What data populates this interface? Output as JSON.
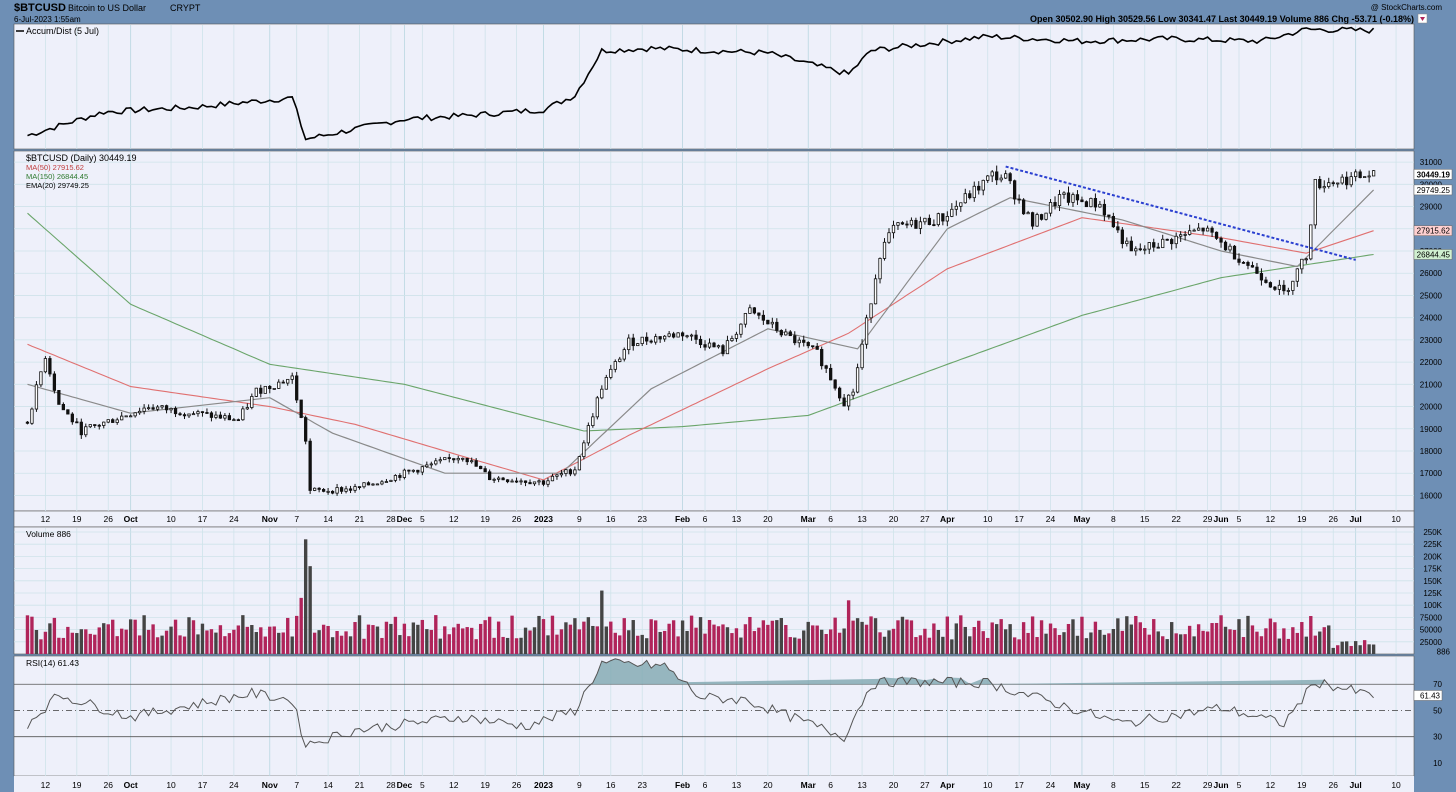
{
  "header": {
    "symbol": "$BTCUSD",
    "name": "Bitcoin to US Dollar",
    "exchange": "CRYPT",
    "date": "6-Jul-2023 1:55am",
    "watermark": "@ StockCharts.com",
    "ohlc_text": "Open 30502.90   High 30529.56   Low 30341.47   Last 30449.19   Volume 886   Chg -53.71 (-0.18%)"
  },
  "colors": {
    "background": "#6e8fb5",
    "panel": "#eef0fa",
    "grid": "#cfe3ea",
    "candle": "#111111",
    "ma50": "#e07070",
    "ma150": "#6aa56a",
    "ema20": "#8a8a8a",
    "trendline": "#2a3fd0",
    "volume_up": "#444444",
    "volume_down": "#b0245a",
    "rsi_fill": "#7fa8b0"
  },
  "x_axis": {
    "ticks": [
      "12",
      "19",
      "26",
      "Oct",
      "10",
      "17",
      "24",
      "Nov",
      "7",
      "14",
      "21",
      "28",
      "Dec",
      "5",
      "12",
      "19",
      "26",
      "2023",
      "9",
      "16",
      "23",
      "Feb",
      "6",
      "13",
      "20",
      "Mar",
      "6",
      "13",
      "20",
      "27",
      "Apr",
      "10",
      "17",
      "24",
      "May",
      "8",
      "15",
      "22",
      "29",
      "Jun",
      "5",
      "12",
      "19",
      "26",
      "Jul",
      "10"
    ],
    "bold_ticks": [
      "Oct",
      "Nov",
      "Dec",
      "2023",
      "Feb",
      "Mar",
      "Apr",
      "May",
      "Jun",
      "Jul"
    ]
  },
  "chart_data": [
    {
      "type": "line",
      "title": "Accum/Dist (5 Jul)",
      "x": [
        "2022-09-08",
        "2022-09-25",
        "2022-10-15",
        "2022-11-06",
        "2022-11-09",
        "2022-12-01",
        "2022-12-15",
        "2023-01-01",
        "2023-01-08",
        "2023-01-14",
        "2023-01-25",
        "2023-02-20",
        "2023-03-10",
        "2023-03-15",
        "2023-04-01",
        "2023-04-10",
        "2023-05-01",
        "2023-05-20",
        "2023-06-10",
        "2023-06-20",
        "2023-07-05"
      ],
      "y": [
        0.08,
        0.28,
        0.32,
        0.4,
        0.05,
        0.22,
        0.25,
        0.3,
        0.42,
        0.8,
        0.82,
        0.78,
        0.6,
        0.8,
        0.88,
        0.92,
        0.88,
        0.9,
        0.88,
        0.98,
        0.97
      ]
    },
    {
      "type": "candlestick",
      "title": "$BTCUSD (Daily) 30449.19",
      "ylim": [
        15300,
        31500
      ],
      "y_ticks": [
        16000,
        17000,
        18000,
        19000,
        20000,
        21000,
        22000,
        23000,
        24000,
        25000,
        26000,
        27000,
        28000,
        29000,
        30000,
        31000
      ],
      "last_labels": [
        "30449.19",
        "29749.25",
        "27915.62",
        "26844.45"
      ],
      "legend": [
        "MA(50) 27915.62",
        "MA(150) 26844.45",
        "EMA(20) 29749.25"
      ],
      "close_keypoints": {
        "x": [
          "2022-09-08",
          "2022-09-12",
          "2022-09-15",
          "2022-09-20",
          "2022-10-05",
          "2022-10-25",
          "2022-10-29",
          "2022-11-06",
          "2022-11-09",
          "2022-11-10",
          "2022-11-20",
          "2022-12-01",
          "2022-12-14",
          "2022-12-20",
          "2023-01-01",
          "2023-01-08",
          "2023-01-14",
          "2023-01-20",
          "2023-02-01",
          "2023-02-10",
          "2023-02-16",
          "2023-02-24",
          "2023-03-03",
          "2023-03-09",
          "2023-03-11",
          "2023-03-17",
          "2023-03-20",
          "2023-03-31",
          "2023-04-11",
          "2023-04-14",
          "2023-04-20",
          "2023-04-26",
          "2023-05-05",
          "2023-05-12",
          "2023-05-28",
          "2023-06-02",
          "2023-06-10",
          "2023-06-15",
          "2023-06-20",
          "2023-06-22",
          "2023-07-05"
        ],
        "y": [
          19300,
          22300,
          20100,
          18900,
          20000,
          19400,
          20700,
          21300,
          18500,
          16200,
          16300,
          17000,
          17800,
          16800,
          16600,
          17200,
          20900,
          22900,
          23300,
          22500,
          24300,
          23200,
          22400,
          20200,
          20700,
          26900,
          28000,
          28500,
          30400,
          30300,
          28200,
          29400,
          29100,
          26900,
          28000,
          27200,
          25900,
          25100,
          26800,
          30000,
          30449
        ]
      },
      "ma50": {
        "x": [
          "2022-09-08",
          "2022-10-01",
          "2022-11-01",
          "2022-11-20",
          "2022-12-15",
          "2023-01-01",
          "2023-01-20",
          "2023-02-20",
          "2023-03-10",
          "2023-04-01",
          "2023-05-01",
          "2023-06-01",
          "2023-06-20",
          "2023-07-05"
        ],
        "y": [
          22800,
          20900,
          20000,
          19200,
          17700,
          16700,
          18700,
          21700,
          23300,
          26200,
          28500,
          27600,
          26900,
          27915
        ]
      },
      "ma150": {
        "x": [
          "2022-09-08",
          "2022-10-01",
          "2022-11-01",
          "2022-12-01",
          "2023-01-10",
          "2023-02-01",
          "2023-03-01",
          "2023-04-01",
          "2023-05-01",
          "2023-06-01",
          "2023-07-05"
        ],
        "y": [
          28700,
          24600,
          21900,
          21000,
          18900,
          19100,
          19600,
          21900,
          24100,
          25800,
          26844
        ]
      },
      "ema20": {
        "x": [
          "2022-09-08",
          "2022-10-01",
          "2022-11-01",
          "2022-11-15",
          "2022-12-10",
          "2023-01-05",
          "2023-01-25",
          "2023-02-20",
          "2023-03-12",
          "2023-04-01",
          "2023-04-15",
          "2023-05-10",
          "2023-06-01",
          "2023-06-18",
          "2023-07-05"
        ],
        "y": [
          21000,
          19700,
          20400,
          18800,
          17000,
          17000,
          20800,
          23500,
          22600,
          28000,
          29400,
          28400,
          27000,
          26300,
          29749
        ]
      },
      "trendline": {
        "x": [
          "2023-04-14",
          "2023-07-01"
        ],
        "y": [
          30800,
          26600
        ]
      }
    },
    {
      "type": "bar",
      "title": "Volume 886",
      "ylim": [
        0,
        250000
      ],
      "y_ticks": [
        "25000",
        "50000",
        "75000",
        "100K",
        "125K",
        "150K",
        "175K",
        "200K",
        "225K",
        "250K"
      ],
      "last_label": "886",
      "notable": {
        "x": [
          "2022-11-09",
          "2022-11-10",
          "2022-11-08",
          "2023-01-14",
          "2023-03-10"
        ],
        "y": [
          235000,
          180000,
          115000,
          130000,
          110000
        ]
      }
    },
    {
      "type": "line",
      "title": "RSI(14) 61.43",
      "ylim": [
        0,
        90
      ],
      "y_ticks": [
        10,
        30,
        50,
        70
      ],
      "last_label": "61.43",
      "y_keypoints": {
        "x": [
          "2022-09-08",
          "2022-09-15",
          "2022-10-01",
          "2022-10-28",
          "2022-11-06",
          "2022-11-09",
          "2022-11-20",
          "2022-12-14",
          "2022-12-28",
          "2023-01-08",
          "2023-01-14",
          "2023-01-28",
          "2023-02-05",
          "2023-02-15",
          "2023-03-09",
          "2023-03-15",
          "2023-03-20",
          "2023-04-10",
          "2023-05-10",
          "2023-06-01",
          "2023-06-15",
          "2023-06-22",
          "2023-07-05"
        ],
        "y": [
          40,
          62,
          45,
          63,
          58,
          24,
          35,
          45,
          38,
          50,
          86,
          84,
          60,
          58,
          30,
          70,
          72,
          71,
          40,
          52,
          40,
          72,
          61
        ]
      }
    }
  ]
}
